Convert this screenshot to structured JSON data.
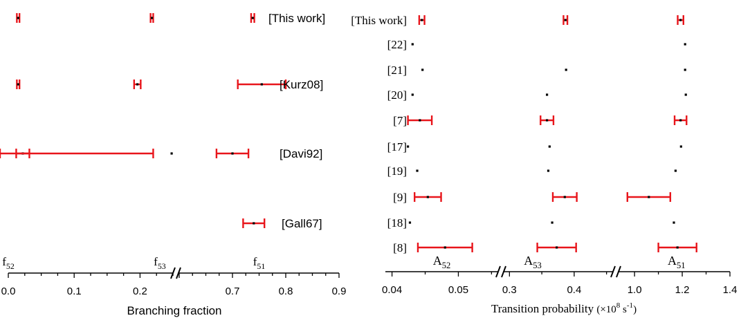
{
  "colors": {
    "error_bar": "#e8151b",
    "point": "#000000",
    "axis": "#000000"
  },
  "chart_data": [
    {
      "type": "scatter",
      "subtype": "broken-axis error-bar plot",
      "xlabel": "Branching fraction",
      "axis_segments": [
        {
          "range": [
            0.0,
            0.25
          ],
          "ticks": [
            "0.0",
            "0.1",
            "0.2"
          ]
        },
        {
          "range": [
            0.6,
            0.9
          ],
          "ticks": [
            "0.7",
            "0.8",
            "0.9"
          ]
        }
      ],
      "quantity_labels": [
        {
          "base": "f",
          "sub": "52",
          "x": 0.0
        },
        {
          "base": "f",
          "sub": "53",
          "x": 0.23
        },
        {
          "base": "f",
          "sub": "51",
          "x": 0.75
        }
      ],
      "rows": [
        {
          "label": "[This work]",
          "points": [
            {
              "quantity": "f52",
              "value": 0.015,
              "error": 0.002
            },
            {
              "quantity": "f53",
              "value": 0.218,
              "error": 0.002
            },
            {
              "quantity": "f51",
              "value": 0.738,
              "error": 0.003
            }
          ]
        },
        {
          "label": "[Kurz08]",
          "points": [
            {
              "quantity": "f52",
              "value": 0.015,
              "error": 0.002
            },
            {
              "quantity": "f53",
              "value": 0.196,
              "error": 0.005
            },
            {
              "quantity": "f51",
              "value": 0.755,
              "error": 0.045
            }
          ]
        },
        {
          "label": "[Davi92]",
          "points": [
            {
              "quantity": "f52",
              "value": 0.022,
              "error": 0.01
            },
            {
              "quantity": "f53",
              "value": 0.248,
              "error": 0.028
            },
            {
              "quantity": "f51",
              "value": 0.7,
              "error": 0.03
            }
          ]
        },
        {
          "label": "[Gall67]",
          "points": [
            {
              "quantity": "f51",
              "value": 0.74,
              "error": 0.02
            }
          ]
        }
      ]
    },
    {
      "type": "scatter",
      "subtype": "broken-axis error-bar plot",
      "xlabel": "Transition probability",
      "xlabel_unit": {
        "open": "(×10",
        "exp": "8",
        "mid": " s",
        "exp2": "-1",
        "close": ")"
      },
      "axis_segments": [
        {
          "range": [
            0.039,
            0.056
          ],
          "ticks": [
            "0.04",
            "0.05"
          ]
        },
        {
          "range": [
            0.29,
            0.46
          ],
          "ticks": [
            "0.3",
            "0.4"
          ]
        },
        {
          "range": [
            0.93,
            1.4
          ],
          "ticks": [
            "1.0",
            "1.2",
            "1.4"
          ]
        }
      ],
      "quantity_labels": [
        {
          "base": "A",
          "sub": "52",
          "x": 0.0475
        },
        {
          "base": "A",
          "sub": "53",
          "x": 0.336
        },
        {
          "base": "A",
          "sub": "51",
          "x": 1.176
        }
      ],
      "rows": [
        {
          "label": "[This work]",
          "points": [
            {
              "quantity": "A52",
              "value": 0.0445,
              "error": 0.0004
            },
            {
              "quantity": "A53",
              "value": 0.3865,
              "error": 0.003
            },
            {
              "quantity": "A51",
              "value": 1.193,
              "error": 0.012
            }
          ]
        },
        {
          "label": "[22]",
          "points": [
            {
              "quantity": "A52",
              "value": 0.0431
            },
            {
              "quantity": "A51",
              "value": 1.212
            }
          ]
        },
        {
          "label": "[21]",
          "points": [
            {
              "quantity": "A52",
              "value": 0.0446
            },
            {
              "quantity": "A53",
              "value": 0.3875
            },
            {
              "quantity": "A51",
              "value": 1.212
            }
          ]
        },
        {
          "label": "[20]",
          "points": [
            {
              "quantity": "A52",
              "value": 0.0431
            },
            {
              "quantity": "A53",
              "value": 0.358
            },
            {
              "quantity": "A51",
              "value": 1.215
            }
          ]
        },
        {
          "label": "[7]",
          "points": [
            {
              "quantity": "A52",
              "value": 0.0442,
              "error": 0.0018
            },
            {
              "quantity": "A53",
              "value": 0.358,
              "error": 0.01
            },
            {
              "quantity": "A51",
              "value": 1.193,
              "error": 0.025
            }
          ]
        },
        {
          "label": "[17]",
          "points": [
            {
              "quantity": "A52",
              "value": 0.0424
            },
            {
              "quantity": "A53",
              "value": 0.362
            },
            {
              "quantity": "A51",
              "value": 1.195
            }
          ]
        },
        {
          "label": "[19]",
          "points": [
            {
              "quantity": "A52",
              "value": 0.0438
            },
            {
              "quantity": "A53",
              "value": 0.36
            },
            {
              "quantity": "A51",
              "value": 1.172
            }
          ]
        },
        {
          "label": "[9]",
          "points": [
            {
              "quantity": "A52",
              "value": 0.0454,
              "error": 0.002
            },
            {
              "quantity": "A53",
              "value": 0.3855,
              "error": 0.0185
            },
            {
              "quantity": "A51",
              "value": 1.06,
              "error": 0.09
            }
          ]
        },
        {
          "label": "[18]",
          "points": [
            {
              "quantity": "A52",
              "value": 0.0427
            },
            {
              "quantity": "A53",
              "value": 0.366
            },
            {
              "quantity": "A51",
              "value": 1.165
            }
          ]
        },
        {
          "label": "[8]",
          "points": [
            {
              "quantity": "A52",
              "value": 0.048,
              "error": 0.0041
            },
            {
              "quantity": "A53",
              "value": 0.373,
              "error": 0.03
            },
            {
              "quantity": "A51",
              "value": 1.18,
              "error": 0.08
            }
          ]
        }
      ]
    }
  ]
}
